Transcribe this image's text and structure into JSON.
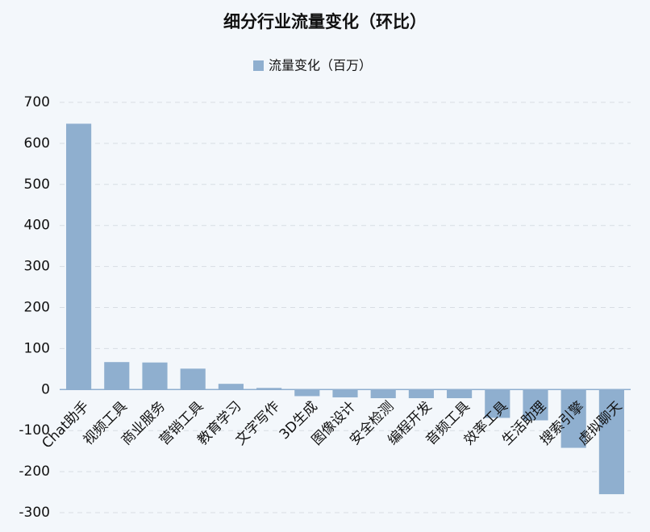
{
  "chart_data": {
    "type": "bar",
    "title": "细分行业流量变化（环比）",
    "categories": [
      "Chat助手",
      "视频工具",
      "商业服务",
      "营销工具",
      "教育学习",
      "文字写作",
      "3D生成",
      "图像设计",
      "安全检测",
      "编程开发",
      "音频工具",
      "效率工具",
      "生活助理",
      "搜索引擎",
      "虚拟聊天"
    ],
    "series": [
      {
        "name": "流量变化（百万）",
        "color": "#8fafcf",
        "values": [
          648,
          67,
          66,
          51,
          14,
          4,
          -16,
          -19,
          -21,
          -21,
          -21,
          -69,
          -75,
          -142,
          -255
        ]
      }
    ],
    "ylim": [
      -300,
      700
    ],
    "yticks": [
      -300,
      -200,
      -100,
      0,
      100,
      200,
      300,
      400,
      500,
      600,
      700
    ],
    "grid": true,
    "legend": "top"
  }
}
